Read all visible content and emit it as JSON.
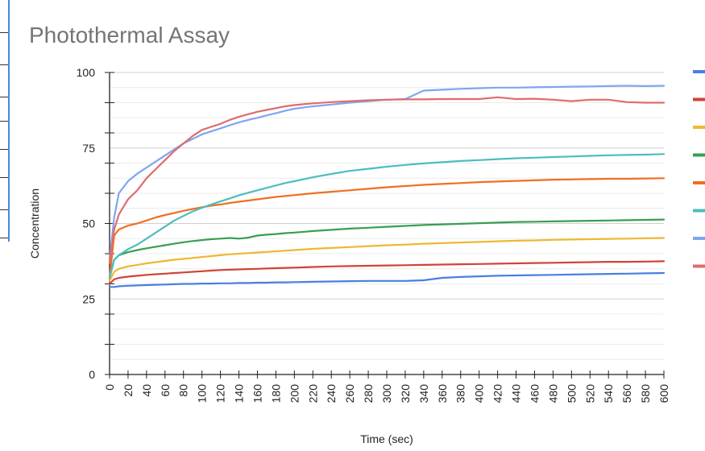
{
  "chart_data": {
    "type": "line",
    "title": "Photothermal Assay",
    "xlabel": "Time (sec)",
    "ylabel": "Concentration",
    "xlim": [
      0,
      600
    ],
    "ylim": [
      0,
      100
    ],
    "xticks": [
      "0",
      "20",
      "40",
      "60",
      "80",
      "100",
      "120",
      "140",
      "160",
      "180",
      "200",
      "220",
      "240",
      "260",
      "280",
      "300",
      "320",
      "340",
      "360",
      "380",
      "400",
      "420",
      "440",
      "460",
      "480",
      "500",
      "520",
      "540",
      "560",
      "580",
      "600"
    ],
    "yticks": [
      "0",
      "25",
      "50",
      "75",
      "100"
    ],
    "grid": true,
    "legend_position": "right",
    "x": [
      0,
      5,
      10,
      20,
      30,
      40,
      50,
      60,
      70,
      80,
      90,
      100,
      110,
      120,
      130,
      140,
      150,
      160,
      170,
      180,
      190,
      200,
      220,
      240,
      260,
      280,
      300,
      320,
      340,
      360,
      380,
      400,
      420,
      440,
      460,
      480,
      500,
      520,
      540,
      560,
      580,
      600
    ],
    "series": [
      {
        "color": "#4a7fe0",
        "values": [
          29,
          29,
          29.2,
          29.4,
          29.5,
          29.6,
          29.7,
          29.8,
          29.9,
          30,
          30,
          30.1,
          30.1,
          30.2,
          30.2,
          30.3,
          30.3,
          30.4,
          30.4,
          30.5,
          30.5,
          30.6,
          30.7,
          30.8,
          30.9,
          31,
          31,
          31,
          31.2,
          32,
          32.3,
          32.5,
          32.7,
          32.8,
          32.9,
          33,
          33.1,
          33.2,
          33.3,
          33.4,
          33.5,
          33.6
        ]
      },
      {
        "color": "#d04437",
        "values": [
          30,
          31.5,
          32,
          32.4,
          32.7,
          33,
          33.2,
          33.4,
          33.6,
          33.8,
          34,
          34.2,
          34.4,
          34.6,
          34.7,
          34.8,
          34.9,
          35,
          35.1,
          35.2,
          35.3,
          35.4,
          35.6,
          35.8,
          35.9,
          36,
          36.1,
          36.2,
          36.3,
          36.4,
          36.5,
          36.6,
          36.7,
          36.8,
          36.9,
          37,
          37.1,
          37.2,
          37.3,
          37.3,
          37.4,
          37.5
        ]
      },
      {
        "color": "#f0b731",
        "values": [
          31,
          34,
          35,
          35.8,
          36.3,
          36.8,
          37.2,
          37.6,
          38,
          38.3,
          38.6,
          38.9,
          39.2,
          39.5,
          39.8,
          40,
          40.2,
          40.4,
          40.6,
          40.8,
          41,
          41.2,
          41.6,
          41.9,
          42.2,
          42.5,
          42.8,
          43,
          43.3,
          43.5,
          43.7,
          43.9,
          44.1,
          44.3,
          44.4,
          44.6,
          44.7,
          44.8,
          44.9,
          45,
          45.1,
          45.2
        ]
      },
      {
        "color": "#3a9e52",
        "values": [
          32,
          38,
          39.5,
          40.5,
          41.2,
          41.8,
          42.3,
          42.8,
          43.3,
          43.8,
          44.2,
          44.5,
          44.8,
          45,
          45.2,
          45,
          45.3,
          46,
          46.3,
          46.5,
          46.8,
          47,
          47.5,
          47.9,
          48.3,
          48.6,
          48.9,
          49.2,
          49.5,
          49.7,
          49.9,
          50.1,
          50.3,
          50.5,
          50.6,
          50.7,
          50.8,
          50.9,
          51,
          51.1,
          51.2,
          51.3
        ]
      },
      {
        "color": "#ef6f22",
        "values": [
          32,
          46,
          48,
          49.3,
          50,
          51,
          52,
          52.8,
          53.5,
          54.2,
          54.8,
          55.4,
          55.9,
          56.3,
          56.8,
          57.2,
          57.6,
          58,
          58.4,
          58.8,
          59.1,
          59.4,
          60,
          60.5,
          61,
          61.5,
          62,
          62.4,
          62.8,
          63.1,
          63.4,
          63.7,
          63.9,
          64.1,
          64.3,
          64.5,
          64.6,
          64.7,
          64.8,
          64.8,
          64.9,
          65
        ]
      },
      {
        "color": "#4dbdbd",
        "values": [
          32,
          38,
          39.5,
          41.5,
          43,
          45,
          47,
          49,
          51,
          52.5,
          54,
          55.2,
          56.3,
          57.3,
          58.3,
          59.3,
          60.2,
          61,
          61.8,
          62.6,
          63.4,
          64,
          65.3,
          66.4,
          67.4,
          68.1,
          68.8,
          69.4,
          69.9,
          70.3,
          70.7,
          71,
          71.3,
          71.6,
          71.8,
          72,
          72.2,
          72.4,
          72.6,
          72.7,
          72.8,
          73
        ]
      },
      {
        "color": "#7ea6f0",
        "values": [
          38,
          52,
          60,
          64,
          66.5,
          68.5,
          70.5,
          72.5,
          74.5,
          76.5,
          78,
          79.5,
          80.5,
          81.5,
          82.5,
          83.5,
          84.3,
          85,
          85.8,
          86.5,
          87.3,
          88,
          88.8,
          89.4,
          90,
          90.5,
          91,
          91.2,
          94,
          94.3,
          94.6,
          94.8,
          95,
          95,
          95.1,
          95.2,
          95.3,
          95.4,
          95.5,
          95.6,
          95.5,
          95.6
        ]
      },
      {
        "color": "#e06c6c",
        "values": [
          37,
          48,
          53,
          58,
          61,
          65,
          68,
          71,
          74,
          76.5,
          79,
          81,
          82,
          83,
          84.3,
          85.3,
          86.2,
          87,
          87.6,
          88.2,
          88.8,
          89.2,
          89.8,
          90.2,
          90.5,
          90.8,
          91,
          91.1,
          91.1,
          91.2,
          91.2,
          91.2,
          91.8,
          91.2,
          91.3,
          91,
          90.5,
          91,
          91,
          90.2,
          90,
          90
        ]
      }
    ]
  }
}
